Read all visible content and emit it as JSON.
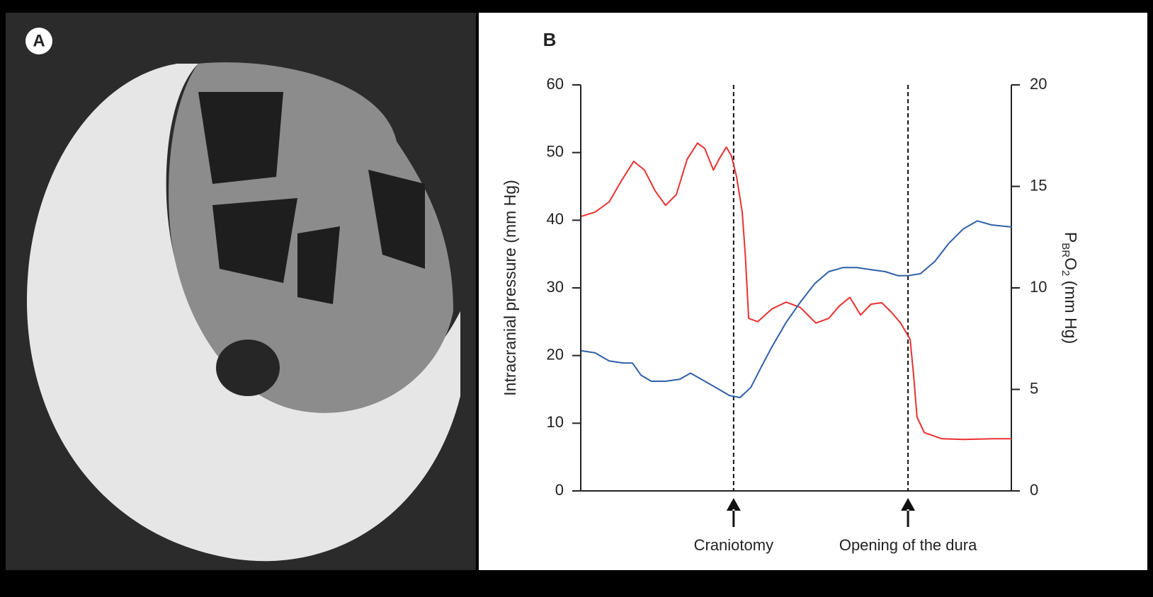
{
  "panel_a": {
    "label": "A"
  },
  "chart_data": {
    "type": "line",
    "panel_label": "B",
    "ylabel": "Intracranial pressure (mm Hg)",
    "y2label": [
      "P",
      "BR",
      "O",
      "2",
      " (mm Hg)"
    ],
    "xlim": [
      0,
      100
    ],
    "ylim": [
      0,
      60
    ],
    "yticks": [
      0,
      10,
      20,
      30,
      40,
      50,
      60
    ],
    "y2lim": [
      0,
      20
    ],
    "y2ticks": [
      0,
      5,
      10,
      15,
      20
    ],
    "series": [
      {
        "color": "#e8312f",
        "x": [
          0.3,
          3.3,
          6.6,
          9.5,
          12.3,
          14.8,
          17.3,
          19.7,
          22.2,
          24.7,
          27.1,
          28.8,
          30.8,
          32.1,
          33.8,
          35.0,
          36.2,
          37.5,
          38.2,
          39.0,
          41.1,
          44.4,
          47.7,
          51.0,
          54.6,
          57.6,
          60.0,
          62.5,
          65.0,
          67.4,
          69.9,
          72.0,
          74.3,
          76.5,
          77.3,
          78.1,
          79.8,
          83.9,
          88.8,
          95.4,
          100
        ],
        "values": [
          40.6,
          41.2,
          42.7,
          45.9,
          48.7,
          47.4,
          44.3,
          42.2,
          43.8,
          49.0,
          51.4,
          50.6,
          47.4,
          49.0,
          50.8,
          49.5,
          46.4,
          41.2,
          34.9,
          25.5,
          25.0,
          26.9,
          27.9,
          27.1,
          24.8,
          25.5,
          27.3,
          28.6,
          26.0,
          27.6,
          27.8,
          26.5,
          24.8,
          22.4,
          17.1,
          10.9,
          8.6,
          7.7,
          7.6,
          7.7,
          7.7
        ]
      },
      {
        "color": "#2f5fa8",
        "axis": "y2",
        "x": [
          0.3,
          3.3,
          6.6,
          9.9,
          12.0,
          14.0,
          16.4,
          19.7,
          23.0,
          25.5,
          28.0,
          31.3,
          34.5,
          37.0,
          39.5,
          41.9,
          44.4,
          47.7,
          51.0,
          54.3,
          57.6,
          60.9,
          64.1,
          67.4,
          70.7,
          73.7,
          76.0,
          78.9,
          82.2,
          85.5,
          88.8,
          92.1,
          95.4,
          100
        ],
        "values": [
          6.9,
          6.8,
          6.4,
          6.3,
          6.3,
          5.7,
          5.4,
          5.4,
          5.5,
          5.8,
          5.5,
          5.1,
          4.7,
          4.6,
          5.1,
          6.1,
          7.1,
          8.3,
          9.3,
          10.2,
          10.8,
          11.0,
          11.0,
          10.9,
          10.8,
          10.6,
          10.6,
          10.7,
          11.3,
          12.2,
          12.9,
          13.3,
          13.1,
          13.0
        ]
      }
    ],
    "annotations": [
      {
        "text": "Craniotomy",
        "x": 35.5
      },
      {
        "text": "Opening of the dura",
        "x": 76.0
      }
    ]
  }
}
